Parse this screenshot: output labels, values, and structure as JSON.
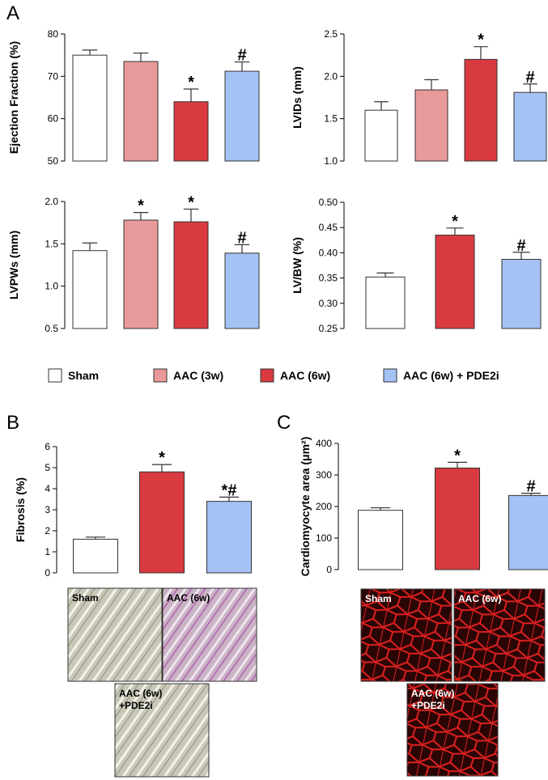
{
  "panels": [
    "A",
    "B",
    "C"
  ],
  "legend": [
    {
      "name": "Sham",
      "color": "#ffffff"
    },
    {
      "name": "AAC (3w)",
      "color": "#e89a9a"
    },
    {
      "name": "AAC (6w)",
      "color": "#d93a40"
    },
    {
      "name": "AAC (6w) + PDE2i",
      "color": "#a4c2f4"
    }
  ],
  "chart_data": [
    {
      "type": "bar",
      "ylabel": "Ejection Fraction (%)",
      "ylim": [
        50,
        80
      ],
      "yticks": [
        50,
        60,
        70,
        80
      ],
      "categories": [
        null,
        null,
        null,
        null
      ],
      "values": [
        75,
        73.5,
        64,
        71.2
      ],
      "errors": [
        1.2,
        2,
        3,
        2.2
      ],
      "colors": [
        "#ffffff",
        "#e89a9a",
        "#d93a40",
        "#a4c2f4"
      ],
      "annotations": [
        null,
        null,
        "*",
        "#"
      ]
    },
    {
      "type": "bar",
      "ylabel": "LVIDs (mm)",
      "ylim": [
        1,
        2.5
      ],
      "yticks": [
        {
          "value": 1,
          "label": "1.0"
        },
        1.5,
        {
          "value": 2,
          "label": "2.0"
        },
        2.5
      ],
      "categories": [
        null,
        null,
        null,
        null
      ],
      "values": [
        1.6,
        1.84,
        2.2,
        1.81
      ],
      "errors": [
        0.1,
        0.12,
        0.15,
        0.1
      ],
      "colors": [
        "#ffffff",
        "#e89a9a",
        "#d93a40",
        "#a4c2f4"
      ],
      "annotations": [
        null,
        null,
        "*",
        "#"
      ]
    },
    {
      "type": "bar",
      "ylabel": "LVPWs (mm)",
      "ylim": [
        0.5,
        2
      ],
      "yticks": [
        0.5,
        {
          "value": 1,
          "label": "1.0"
        },
        1.5,
        {
          "value": 2,
          "label": "2.0"
        }
      ],
      "categories": [
        null,
        null,
        null,
        null
      ],
      "values": [
        1.42,
        1.78,
        1.76,
        1.39
      ],
      "errors": [
        0.09,
        0.09,
        0.15,
        0.1
      ],
      "colors": [
        "#ffffff",
        "#e89a9a",
        "#d93a40",
        "#a4c2f4"
      ],
      "annotations": [
        null,
        "*",
        "*",
        "#"
      ]
    },
    {
      "type": "bar",
      "ylabel": "LV/BW (%)",
      "ylim": [
        0.25,
        0.5
      ],
      "yticks": [
        0.25,
        {
          "value": 0.3,
          "label": "0.30"
        },
        0.35,
        {
          "value": 0.4,
          "label": "0.40"
        },
        0.45,
        {
          "value": 0.5,
          "label": "0.50"
        }
      ],
      "categories": [
        null,
        null,
        null
      ],
      "values": [
        0.352,
        0.435,
        0.387
      ],
      "errors": [
        0.008,
        0.014,
        0.014
      ],
      "colors": [
        "#ffffff",
        "#d93a40",
        "#a4c2f4"
      ],
      "annotations": [
        null,
        "*",
        "#"
      ]
    },
    {
      "type": "bar",
      "ylabel": "Fibrosis (%)",
      "ylim": [
        0,
        6
      ],
      "yticks": [
        0,
        1,
        2,
        3,
        4,
        5,
        6
      ],
      "categories": [
        null,
        null,
        null
      ],
      "values": [
        1.6,
        4.8,
        3.4
      ],
      "errors": [
        0.1,
        0.35,
        0.2
      ],
      "colors": [
        "#ffffff",
        "#d93a40",
        "#a4c2f4"
      ],
      "annotations": [
        null,
        "*",
        "*#"
      ]
    },
    {
      "type": "bar",
      "ylabel": "Cardiomyocyte area (μm²)",
      "ylim": [
        0,
        400
      ],
      "yticks": [
        0,
        100,
        200,
        300,
        400
      ],
      "categories": [
        null,
        null,
        null
      ],
      "values": [
        188,
        322,
        235
      ],
      "errors": [
        8,
        18,
        7
      ],
      "colors": [
        "#ffffff",
        "#d93a40",
        "#a4c2f4"
      ],
      "annotations": [
        null,
        "*",
        "#"
      ]
    }
  ],
  "images": {
    "B": [
      [
        "Sham"
      ],
      [
        "AAC (6w)"
      ],
      [
        "AAC (6w)",
        "+PDE2i"
      ]
    ],
    "C": [
      [
        "Sham"
      ],
      [
        "AAC (6w)"
      ],
      [
        "AAC (6w)",
        "+PDE2i"
      ]
    ]
  }
}
